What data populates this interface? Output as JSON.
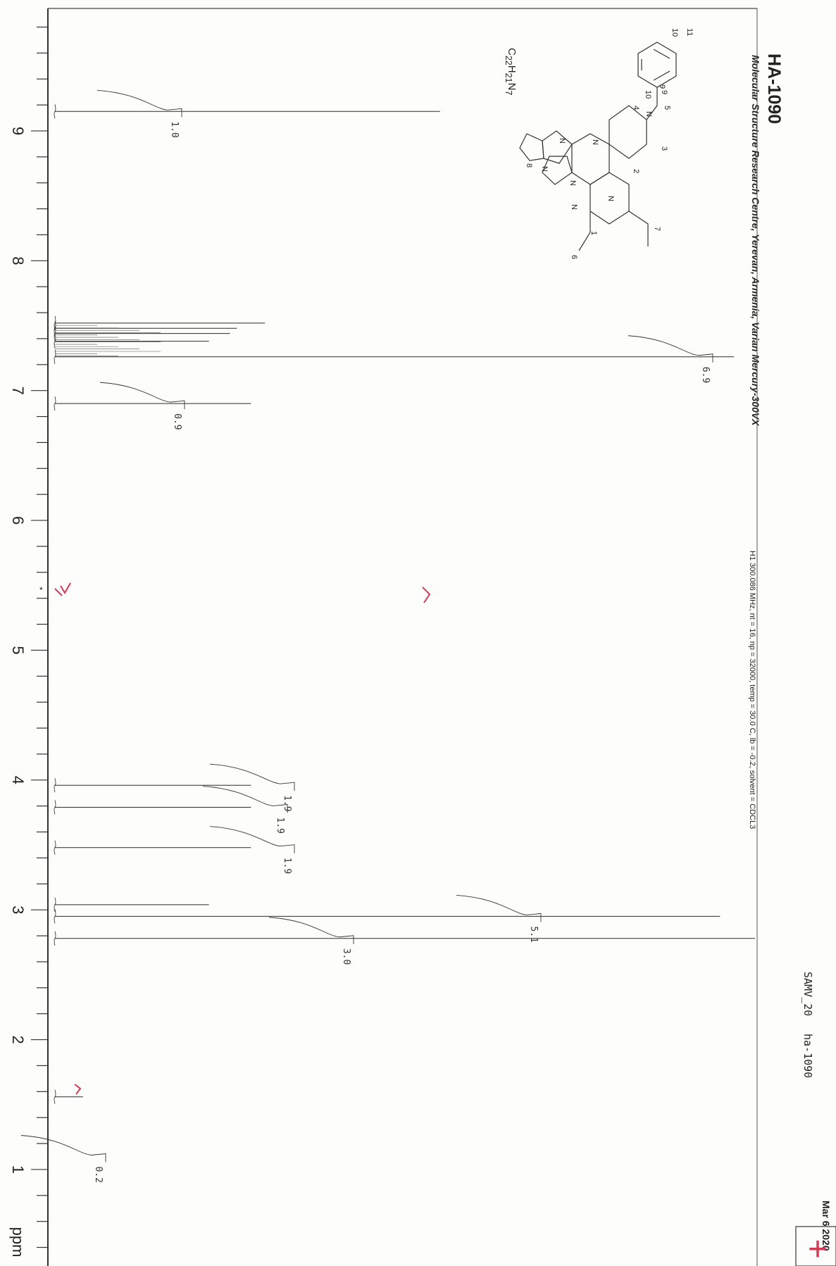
{
  "header": {
    "institution": "Molecular Structure Research Centre, Yerevan, Armenia, Varian Mercury-300VX",
    "acquisition": "H1 300.086 MHz, nt = 16, np = 32000, temp = 30.0 C, lb = -0.2, solvent = CDCL3",
    "sample_code": "SAMV_20",
    "file_name": "ha-1090",
    "date": "Mar  6 2020",
    "check_mark": "+"
  },
  "structure": {
    "sample_name": "HA-1090",
    "formula": "C22H21N7",
    "atom_labels": [
      "11",
      "10",
      "9",
      "10",
      "9",
      "5",
      "4",
      "3",
      "2",
      "7",
      "1",
      "6",
      "8",
      "N",
      "N",
      "N",
      "N",
      "N",
      "N",
      "N"
    ]
  },
  "chart_data": {
    "type": "line",
    "title": "HA-1090",
    "xlabel": "ppm",
    "ylabel": "",
    "x_axis_orientation": "decreasing",
    "xlim": [
      9.9,
      0.3
    ],
    "x_ticks": [
      "9",
      "8",
      "7",
      "6",
      "5",
      "4",
      "3",
      "2",
      "1",
      "ppm"
    ],
    "peaks": [
      {
        "ppm": 9.15,
        "intensity": 0.55
      },
      {
        "ppm": 7.52,
        "intensity": 0.3
      },
      {
        "ppm": 7.48,
        "intensity": 0.26
      },
      {
        "ppm": 7.44,
        "intensity": 0.25
      },
      {
        "ppm": 7.38,
        "intensity": 0.22
      },
      {
        "ppm": 7.26,
        "intensity": 0.97
      },
      {
        "ppm": 6.9,
        "intensity": 0.28
      },
      {
        "ppm": 3.96,
        "intensity": 0.28
      },
      {
        "ppm": 3.79,
        "intensity": 0.28
      },
      {
        "ppm": 3.48,
        "intensity": 0.28
      },
      {
        "ppm": 3.04,
        "intensity": 0.22
      },
      {
        "ppm": 2.95,
        "intensity": 0.95
      },
      {
        "ppm": 2.78,
        "intensity": 1.0
      },
      {
        "ppm": 1.56,
        "intensity": 0.04
      }
    ],
    "integrals": [
      {
        "ppm": 9.15,
        "value": "1.0"
      },
      {
        "ppm": 7.26,
        "value": "6.9"
      },
      {
        "ppm": 6.9,
        "value": "0.9"
      },
      {
        "ppm": 3.96,
        "value": "1.9"
      },
      {
        "ppm": 3.79,
        "value": "1.9"
      },
      {
        "ppm": 3.48,
        "value": "1.9"
      },
      {
        "ppm": 2.95,
        "value": "5.1"
      },
      {
        "ppm": 2.78,
        "value": "3.0"
      },
      {
        "ppm": 1.1,
        "value": "0.2"
      }
    ],
    "grid": false,
    "colors": {
      "trace": "#2b2b2b",
      "annotation": "#d03a55"
    }
  }
}
